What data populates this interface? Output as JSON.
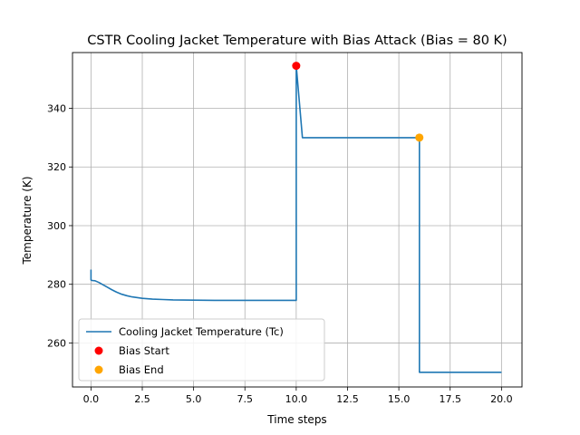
{
  "chart_data": {
    "type": "line",
    "title": "CSTR Cooling Jacket Temperature with Bias Attack (Bias = 80 K)",
    "xlabel": "Time steps",
    "ylabel": "Temperature (K)",
    "xlim": [
      -0.9,
      21.0
    ],
    "ylim": [
      245.0,
      359.0
    ],
    "xticks": [
      0.0,
      2.5,
      5.0,
      7.5,
      10.0,
      12.5,
      15.0,
      17.5,
      20.0
    ],
    "xtick_labels": [
      "0.0",
      "2.5",
      "5.0",
      "7.5",
      "10.0",
      "12.5",
      "15.0",
      "17.5",
      "20.0"
    ],
    "yticks": [
      260,
      280,
      300,
      320,
      340
    ],
    "ytick_labels": [
      "260",
      "280",
      "300",
      "320",
      "340"
    ],
    "grid": true,
    "legend_position": "lower-left",
    "series": [
      {
        "name": "Cooling Jacket Temperature (Tc)",
        "kind": "line",
        "color": "#1f77b4",
        "x": [
          0.0,
          0.0,
          0.05,
          0.2,
          0.4,
          0.6,
          0.8,
          1.0,
          1.25,
          1.5,
          1.75,
          2.0,
          2.5,
          3.0,
          3.5,
          4.0,
          5.0,
          6.0,
          7.0,
          8.0,
          9.0,
          9.98,
          10.0,
          10.0,
          10.3,
          15.98,
          16.0,
          16.0,
          20.0
        ],
        "y": [
          285.0,
          281.5,
          281.3,
          281.2,
          280.6,
          279.8,
          279.0,
          278.2,
          277.3,
          276.6,
          276.1,
          275.7,
          275.2,
          274.95,
          274.8,
          274.7,
          274.6,
          274.55,
          274.55,
          274.55,
          274.55,
          274.55,
          274.55,
          354.5,
          330.0,
          330.0,
          330.0,
          250.0,
          250.0
        ]
      },
      {
        "name": "Bias Start",
        "kind": "scatter",
        "color": "#ff0000",
        "x": [
          10.0
        ],
        "y": [
          354.5
        ]
      },
      {
        "name": "Bias End",
        "kind": "scatter",
        "color": "#ffa500",
        "x": [
          16.0
        ],
        "y": [
          330.0
        ]
      }
    ]
  }
}
